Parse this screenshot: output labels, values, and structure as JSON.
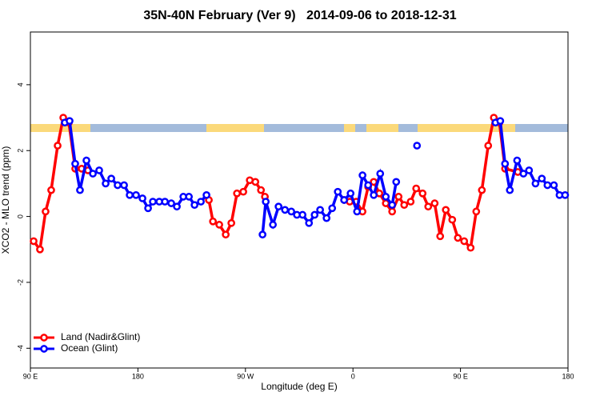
{
  "chart_data": {
    "type": "line",
    "title": "35N-40N February (Ver 9)   2014-09-06 to 2018-12-31",
    "x_label": "Longitude (deg E)",
    "y_label": "XCO2 - MLO trend (ppm)",
    "xlim": [
      90,
      540
    ],
    "ylim": [
      -4.6,
      5.6
    ],
    "xticks": [
      {
        "value": 90,
        "label": "90 E"
      },
      180,
      {
        "value": 270,
        "label": "90 W"
      },
      {
        "value": 360,
        "label": "0"
      },
      {
        "value": 450,
        "label": "90 E"
      },
      {
        "value": 540,
        "label": "180"
      }
    ],
    "yticks": [
      -4,
      -2,
      0,
      2,
      4
    ],
    "legend": "bottom-left",
    "series": [
      {
        "name": "Land (Nadir&Glint)",
        "color": "#ff0000",
        "x": [
          92.7,
          98,
          102.7,
          107.4,
          112.8,
          117.5,
          122.2,
          127.5,
          132.9,
          138.2,
          null,
          239.4,
          242.8,
          248.1,
          253.5,
          258.2,
          262.9,
          268.2,
          273.6,
          278.3,
          283,
          286.3,
          null,
          352.6,
          357.3,
          362.7,
          368,
          372.7,
          377.4,
          382.1,
          387.5,
          392.8,
          398.2,
          402.9,
          408.3,
          412.9,
          418.3,
          423,
          428.4,
          433,
          437.7,
          443.1,
          447.8,
          453.1,
          458.5,
          463.2,
          467.9,
          473.2,
          477.9,
          482.6,
          487.3,
          498
        ],
        "values": [
          -0.75,
          -1.0,
          0.15,
          0.8,
          2.15,
          3.0,
          2.85,
          1.45,
          1.45,
          1.4,
          null,
          0.5,
          -0.15,
          -0.25,
          -0.55,
          -0.2,
          0.7,
          0.75,
          1.1,
          1.05,
          0.8,
          0.6,
          null,
          0.5,
          0.45,
          0.45,
          0.15,
          0.9,
          1.05,
          0.7,
          0.4,
          0.15,
          0.6,
          0.35,
          0.45,
          0.85,
          0.7,
          0.3,
          0.4,
          -0.6,
          0.2,
          -0.1,
          -0.65,
          -0.75,
          -0.95,
          0.15,
          0.8,
          2.15,
          3.0,
          2.85,
          1.45,
          1.35
        ]
      },
      {
        "name": "Ocean (Glint)",
        "color": "#0000ff",
        "x": [
          118.8,
          122.8,
          127.5,
          131.5,
          136.9,
          142.3,
          147.6,
          153,
          157.7,
          163,
          168.4,
          173.1,
          178.4,
          183.8,
          188.5,
          192.5,
          197.9,
          202.6,
          207.9,
          212.6,
          218,
          222.7,
          227.4,
          232.7,
          237.4,
          null,
          284.3,
          287,
          293,
          297.7,
          303.1,
          308.4,
          313.1,
          317.8,
          323.2,
          327.9,
          332.5,
          337.9,
          342.6,
          347.3,
          352.6,
          358,
          363.4,
          368,
          372.7,
          377.4,
          382.8,
          387.5,
          392.8,
          396.2,
          null,
          413.6,
          null,
          479.3,
          483.3,
          487.3,
          491.3,
          497.4,
          502.7,
          507.4,
          512.8,
          518.1,
          522.8,
          528.2,
          532.9,
          537.6
        ],
        "values": [
          2.85,
          2.9,
          1.6,
          0.8,
          1.7,
          1.3,
          1.4,
          1.0,
          1.15,
          0.95,
          0.95,
          0.65,
          0.65,
          0.55,
          0.25,
          0.45,
          0.45,
          0.45,
          0.4,
          0.3,
          0.6,
          0.6,
          0.35,
          0.45,
          0.65,
          null,
          -0.55,
          0.45,
          -0.25,
          0.3,
          0.2,
          0.15,
          0.05,
          0.05,
          -0.2,
          0.05,
          0.2,
          -0.05,
          0.25,
          0.75,
          0.5,
          0.7,
          0.15,
          1.25,
          0.95,
          0.65,
          1.3,
          0.6,
          0.35,
          1.05,
          null,
          2.15,
          null,
          2.85,
          2.9,
          1.6,
          0.8,
          1.7,
          1.3,
          1.4,
          1.0,
          1.15,
          0.95,
          0.95,
          0.65,
          0.65
        ]
      }
    ]
  }
}
